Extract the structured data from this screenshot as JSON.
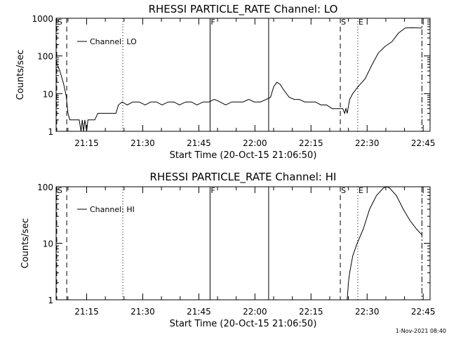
{
  "timestamp": "1-Nov-2021 08:40",
  "chart_data": [
    {
      "type": "line",
      "title": "RHESSI PARTICLE_RATE Channel: LO",
      "xlabel": "Start Time (20-Oct-15 21:06:50)",
      "ylabel": "Counts/sec",
      "yscale": "log",
      "ylim": [
        1,
        1000
      ],
      "xlim": [
        "21:06:50",
        "22:46:50"
      ],
      "x_unit": "time of day (hh:mm:ss)",
      "xticks": [
        "21:15",
        "21:30",
        "21:45",
        "22:00",
        "22:15",
        "22:30",
        "22:45"
      ],
      "yticks": [
        "1",
        "10",
        "100",
        "1000"
      ],
      "legend": {
        "position": "top-left",
        "entries": [
          "Channel: LO"
        ]
      },
      "markers": [
        {
          "label": "S",
          "time": "21:07:00",
          "style": "dashed"
        },
        {
          "label": "",
          "time": "21:09:40",
          "style": "dashed"
        },
        {
          "label": "",
          "time": "21:24:40",
          "style": "dotted"
        },
        {
          "label": "F",
          "time": "21:48:00",
          "style": "solid"
        },
        {
          "label": "",
          "time": "22:03:40",
          "style": "solid"
        },
        {
          "label": "S",
          "time": "22:22:50",
          "style": "dashed"
        },
        {
          "label": "E",
          "time": "22:27:30",
          "style": "dotted"
        },
        {
          "label": "",
          "time": "22:44:40",
          "style": "dashdot"
        }
      ],
      "series": [
        {
          "name": "Channel: LO",
          "points": [
            [
              "21:06:50",
              70
            ],
            [
              "21:07:50",
              40
            ],
            [
              "21:08:50",
              18
            ],
            [
              "21:09:30",
              9
            ],
            [
              "21:10:00",
              3
            ],
            [
              "21:10:30",
              2
            ],
            [
              "21:11:30",
              2
            ],
            [
              "21:12:30",
              2
            ],
            [
              "21:13:00",
              2
            ],
            [
              "21:13:30",
              1
            ],
            [
              "21:13:50",
              2
            ],
            [
              "21:14:10",
              1
            ],
            [
              "21:14:30",
              2
            ],
            [
              "21:15:00",
              1
            ],
            [
              "21:15:20",
              2
            ],
            [
              "21:16:10",
              2
            ],
            [
              "21:17:10",
              2
            ],
            [
              "21:18:00",
              3
            ],
            [
              "21:19:30",
              3
            ],
            [
              "21:21:00",
              3
            ],
            [
              "21:22:50",
              3
            ],
            [
              "21:23:30",
              5
            ],
            [
              "21:24:30",
              6
            ],
            [
              "21:25:50",
              5
            ],
            [
              "21:27:20",
              6
            ],
            [
              "21:29:00",
              6
            ],
            [
              "21:30:40",
              5
            ],
            [
              "21:32:10",
              6
            ],
            [
              "21:33:40",
              6
            ],
            [
              "21:35:10",
              5
            ],
            [
              "21:36:50",
              6
            ],
            [
              "21:38:20",
              6
            ],
            [
              "21:39:50",
              5
            ],
            [
              "21:41:30",
              6
            ],
            [
              "21:43:00",
              6
            ],
            [
              "21:44:30",
              5
            ],
            [
              "21:46:10",
              6
            ],
            [
              "21:47:40",
              6
            ],
            [
              "21:49:10",
              7
            ],
            [
              "21:50:40",
              6
            ],
            [
              "21:52:10",
              5
            ],
            [
              "21:53:50",
              6
            ],
            [
              "21:55:20",
              6
            ],
            [
              "21:56:50",
              6
            ],
            [
              "21:58:20",
              7
            ],
            [
              "21:59:50",
              6
            ],
            [
              "22:01:30",
              6
            ],
            [
              "22:03:00",
              7
            ],
            [
              "22:04:10",
              8
            ],
            [
              "22:05:00",
              15
            ],
            [
              "22:05:50",
              20
            ],
            [
              "22:06:40",
              18
            ],
            [
              "22:07:50",
              12
            ],
            [
              "22:09:10",
              8
            ],
            [
              "22:10:30",
              7
            ],
            [
              "22:11:50",
              7
            ],
            [
              "22:13:20",
              6
            ],
            [
              "22:14:50",
              6
            ],
            [
              "22:16:10",
              6
            ],
            [
              "22:17:40",
              5
            ],
            [
              "22:19:10",
              5
            ],
            [
              "22:20:40",
              4
            ],
            [
              "22:22:00",
              4
            ],
            [
              "22:23:30",
              4
            ],
            [
              "22:24:00",
              3
            ],
            [
              "22:24:20",
              4
            ],
            [
              "22:24:40",
              3
            ],
            [
              "22:25:20",
              7
            ],
            [
              "22:26:10",
              10
            ],
            [
              "22:27:30",
              15
            ],
            [
              "22:29:30",
              25
            ],
            [
              "22:31:10",
              55
            ],
            [
              "22:33:00",
              120
            ],
            [
              "22:34:50",
              180
            ],
            [
              "22:36:40",
              240
            ],
            [
              "22:38:20",
              400
            ],
            [
              "22:40:10",
              550
            ],
            [
              "22:42:00",
              560
            ],
            [
              "22:44:40",
              550
            ]
          ]
        }
      ]
    },
    {
      "type": "line",
      "title": "RHESSI PARTICLE_RATE Channel: HI",
      "xlabel": "Start Time (20-Oct-15 21:06:50)",
      "ylabel": "Counts/sec",
      "yscale": "log",
      "ylim": [
        1,
        100
      ],
      "xlim": [
        "21:06:50",
        "22:46:50"
      ],
      "x_unit": "time of day (hh:mm:ss)",
      "xticks": [
        "21:15",
        "21:30",
        "21:45",
        "22:00",
        "22:15",
        "22:30",
        "22:45"
      ],
      "yticks": [
        "1",
        "10",
        "100"
      ],
      "legend": {
        "position": "top-left",
        "entries": [
          "Channel: HI"
        ]
      },
      "markers": [
        {
          "label": "S",
          "time": "21:07:00",
          "style": "dashed"
        },
        {
          "label": "",
          "time": "21:09:40",
          "style": "dashed"
        },
        {
          "label": "",
          "time": "21:24:40",
          "style": "dotted"
        },
        {
          "label": "F",
          "time": "21:48:00",
          "style": "solid"
        },
        {
          "label": "",
          "time": "22:03:40",
          "style": "solid"
        },
        {
          "label": "S",
          "time": "22:22:50",
          "style": "dashed"
        },
        {
          "label": "E",
          "time": "22:27:30",
          "style": "dotted"
        },
        {
          "label": "",
          "time": "22:44:40",
          "style": "dashdot"
        }
      ],
      "series": [
        {
          "name": "Channel: HI",
          "points": [
            [
              "22:24:40",
              1
            ],
            [
              "22:25:00",
              2
            ],
            [
              "22:25:20",
              3
            ],
            [
              "22:26:10",
              6
            ],
            [
              "22:27:20",
              10
            ],
            [
              "22:29:00",
              18
            ],
            [
              "22:30:40",
              40
            ],
            [
              "22:32:30",
              70
            ],
            [
              "22:34:20",
              95
            ],
            [
              "22:35:10",
              100
            ],
            [
              "22:36:00",
              95
            ],
            [
              "22:37:50",
              70
            ],
            [
              "22:39:40",
              40
            ],
            [
              "22:41:30",
              25
            ],
            [
              "22:43:10",
              18
            ],
            [
              "22:44:40",
              14
            ]
          ]
        }
      ]
    }
  ]
}
